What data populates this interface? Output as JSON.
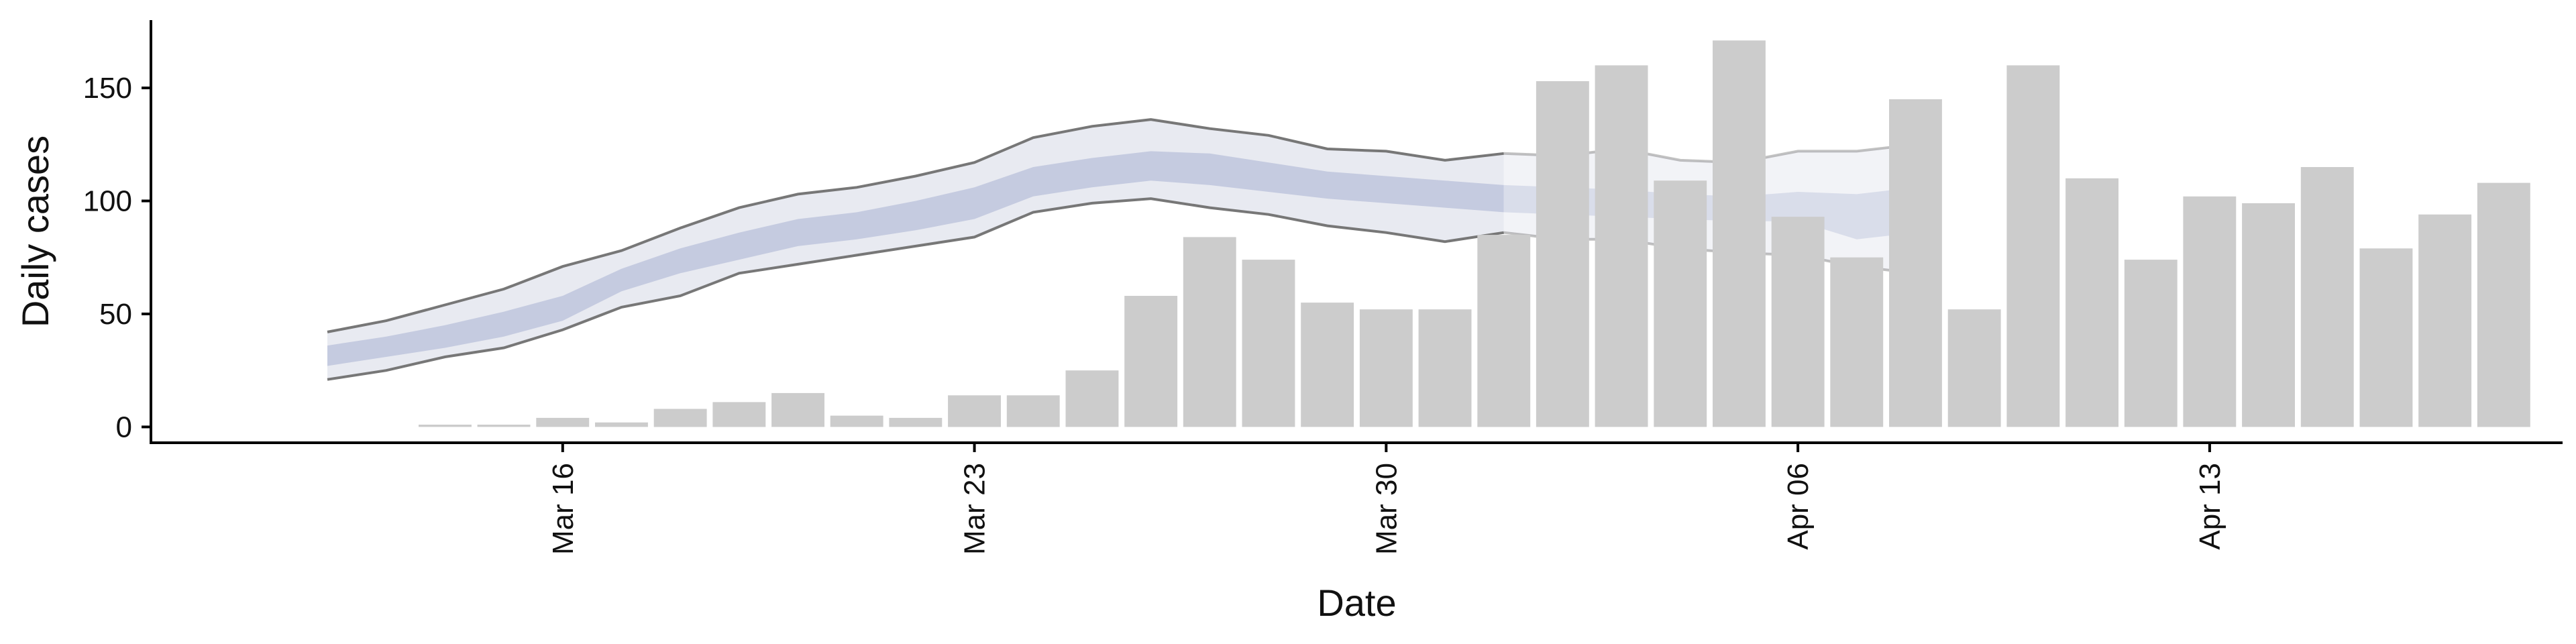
{
  "chart_data": {
    "type": "bar",
    "xlabel": "Date",
    "ylabel": "Daily cases",
    "ylim": [
      -7,
      180
    ],
    "xlim": [
      "2020-03-09",
      "2020-04-19"
    ],
    "yticks": [
      0,
      50,
      100,
      150
    ],
    "xticks": [
      {
        "date": "2020-03-16",
        "label": "Mar 16"
      },
      {
        "date": "2020-03-23",
        "label": "Mar 23"
      },
      {
        "date": "2020-03-30",
        "label": "Mar 30"
      },
      {
        "date": "2020-04-06",
        "label": "Apr 06"
      },
      {
        "date": "2020-04-13",
        "label": "Apr 13"
      }
    ],
    "grid": false,
    "legend": "none",
    "colors": {
      "bar": "#cccccc",
      "outer_band": "#e8eaf1",
      "inner_band": "#c5cbe0",
      "band_line": "#777777",
      "axis": "#000000"
    },
    "bars": {
      "dates": [
        "2020-03-14",
        "2020-03-15",
        "2020-03-16",
        "2020-03-17",
        "2020-03-18",
        "2020-03-19",
        "2020-03-20",
        "2020-03-21",
        "2020-03-22",
        "2020-03-23",
        "2020-03-24",
        "2020-03-25",
        "2020-03-26",
        "2020-03-27",
        "2020-03-28",
        "2020-03-29",
        "2020-03-30",
        "2020-03-31",
        "2020-04-01",
        "2020-04-02",
        "2020-04-03",
        "2020-04-04",
        "2020-04-05",
        "2020-04-06",
        "2020-04-07",
        "2020-04-08",
        "2020-04-09",
        "2020-04-10",
        "2020-04-11",
        "2020-04-12",
        "2020-04-13",
        "2020-04-14",
        "2020-04-15",
        "2020-04-16",
        "2020-04-17",
        "2020-04-18"
      ],
      "values": [
        1,
        1,
        4,
        2,
        8,
        11,
        15,
        5,
        4,
        14,
        14,
        25,
        58,
        84,
        74,
        55,
        52,
        52,
        85,
        153,
        160,
        109,
        171,
        93,
        75,
        145,
        52,
        160,
        110,
        74,
        102,
        99,
        115,
        79,
        94,
        108
      ]
    },
    "estimate_band": {
      "dates": [
        "2020-03-12",
        "2020-03-13",
        "2020-03-14",
        "2020-03-15",
        "2020-03-16",
        "2020-03-17",
        "2020-03-18",
        "2020-03-19",
        "2020-03-20",
        "2020-03-21",
        "2020-03-22",
        "2020-03-23",
        "2020-03-24",
        "2020-03-25",
        "2020-03-26",
        "2020-03-27",
        "2020-03-28",
        "2020-03-29",
        "2020-03-30",
        "2020-03-31",
        "2020-04-01",
        "2020-04-02",
        "2020-04-03",
        "2020-04-04",
        "2020-04-05",
        "2020-04-06",
        "2020-04-07",
        "2020-04-08"
      ],
      "upper_90": [
        42,
        47,
        54,
        61,
        71,
        78,
        88,
        97,
        103,
        106,
        111,
        117,
        128,
        133,
        136,
        132,
        129,
        123,
        122,
        118,
        121,
        120,
        123,
        118,
        117,
        122,
        122,
        125
      ],
      "upper_50": [
        36,
        40,
        45,
        51,
        58,
        70,
        79,
        86,
        92,
        95,
        100,
        106,
        115,
        119,
        122,
        121,
        117,
        113,
        111,
        109,
        107,
        106,
        105,
        103,
        102,
        104,
        103,
        106
      ],
      "lower_50": [
        27,
        31,
        35,
        40,
        47,
        60,
        68,
        74,
        80,
        83,
        87,
        92,
        102,
        106,
        109,
        107,
        104,
        101,
        99,
        97,
        95,
        94,
        93,
        92,
        91,
        91,
        83,
        86
      ],
      "lower_90": [
        21,
        25,
        31,
        35,
        43,
        53,
        58,
        68,
        72,
        76,
        80,
        84,
        95,
        99,
        101,
        97,
        94,
        89,
        86,
        82,
        86,
        83,
        83,
        79,
        77,
        76,
        71,
        68
      ],
      "forecast_from": "2020-04-01"
    }
  }
}
